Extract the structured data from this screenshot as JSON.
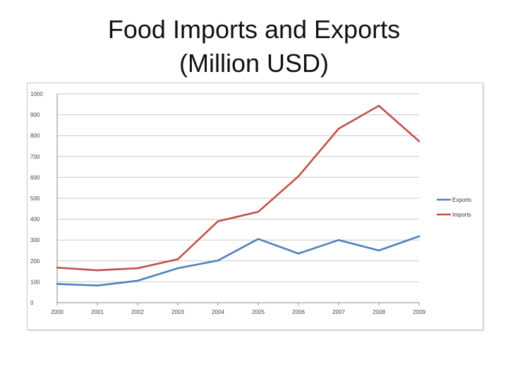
{
  "title": {
    "line1": "Food Imports and Exports",
    "line2": "(Million USD)"
  },
  "colors": {
    "exports": "#4f81bd",
    "imports": "#c0504d",
    "grid": "#c9c9c9",
    "axis": "#8c8c8c"
  },
  "chart_data": {
    "type": "line",
    "title": "Food Imports and Exports (Million USD)",
    "x": [
      "2000",
      "2001",
      "2002",
      "2003",
      "2004",
      "2005",
      "2006",
      "2007",
      "2008",
      "2009"
    ],
    "ylim": [
      0,
      1000
    ],
    "yticks": [
      0,
      100,
      200,
      300,
      400,
      500,
      600,
      700,
      800,
      900,
      1000
    ],
    "grid": true,
    "legend": "right",
    "series": [
      {
        "name": "Exports",
        "values": [
          90,
          82,
          105,
          165,
          202,
          305,
          235,
          300,
          250,
          318
        ]
      },
      {
        "name": "Imports",
        "values": [
          168,
          155,
          165,
          208,
          390,
          435,
          605,
          833,
          943,
          773
        ]
      }
    ]
  }
}
